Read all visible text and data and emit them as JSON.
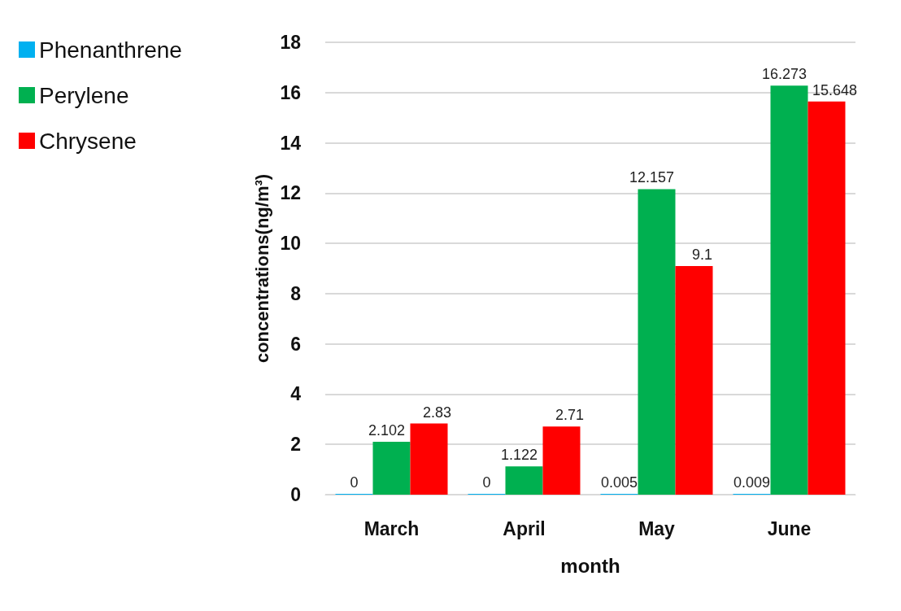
{
  "chart_data": {
    "type": "bar",
    "xlabel": "month",
    "ylabel": "concentrations(ng/m³)",
    "categories": [
      "March",
      "April",
      "May",
      "June"
    ],
    "series": [
      {
        "name": "Phenanthrene",
        "color": "#00b0f0",
        "values": [
          0,
          0,
          0.005,
          0.009
        ]
      },
      {
        "name": "Perylene",
        "color": "#00b050",
        "values": [
          2.102,
          1.122,
          12.157,
          16.273
        ]
      },
      {
        "name": "Chrysene",
        "color": "#ff0000",
        "values": [
          2.83,
          2.71,
          9.1,
          15.648
        ]
      }
    ],
    "ylim": [
      0,
      18
    ],
    "yticks": [
      0,
      2,
      4,
      6,
      8,
      10,
      12,
      14,
      16,
      18
    ],
    "grid": "y",
    "legend": "top left",
    "data_labels": true
  }
}
